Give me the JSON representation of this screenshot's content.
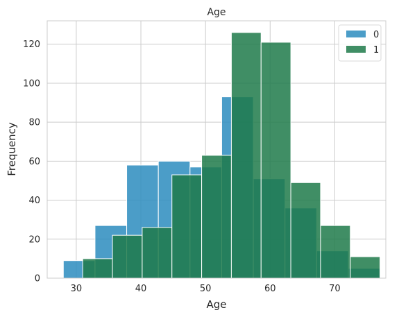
{
  "chart_data": {
    "type": "bar",
    "title": "Age",
    "xlabel": "Age",
    "ylabel": "Frequency",
    "xlim": [
      25.5,
      77.9
    ],
    "ylim": [
      0,
      132
    ],
    "xticks": [
      30,
      40,
      50,
      60,
      70
    ],
    "yticks": [
      0,
      20,
      40,
      60,
      80,
      100,
      120
    ],
    "grid": true,
    "legend_position": "top-right",
    "series": [
      {
        "name": "0",
        "color": "#2b8cbe",
        "bin_edges": [
          28,
          32.9,
          37.8,
          42.7,
          47.6,
          52.5,
          57.4,
          62.3,
          67.2,
          72.1,
          77
        ],
        "values": [
          9,
          27,
          58,
          60,
          57,
          93,
          51,
          36,
          14,
          5
        ]
      },
      {
        "name": "1",
        "color": "#1e7a4a",
        "bin_edges": [
          31,
          35.6,
          40.2,
          44.8,
          49.4,
          54,
          58.6,
          63.2,
          67.8,
          72.4,
          77
        ],
        "values": [
          10,
          22,
          26,
          53,
          63,
          126,
          121,
          49,
          27,
          11
        ]
      }
    ]
  }
}
